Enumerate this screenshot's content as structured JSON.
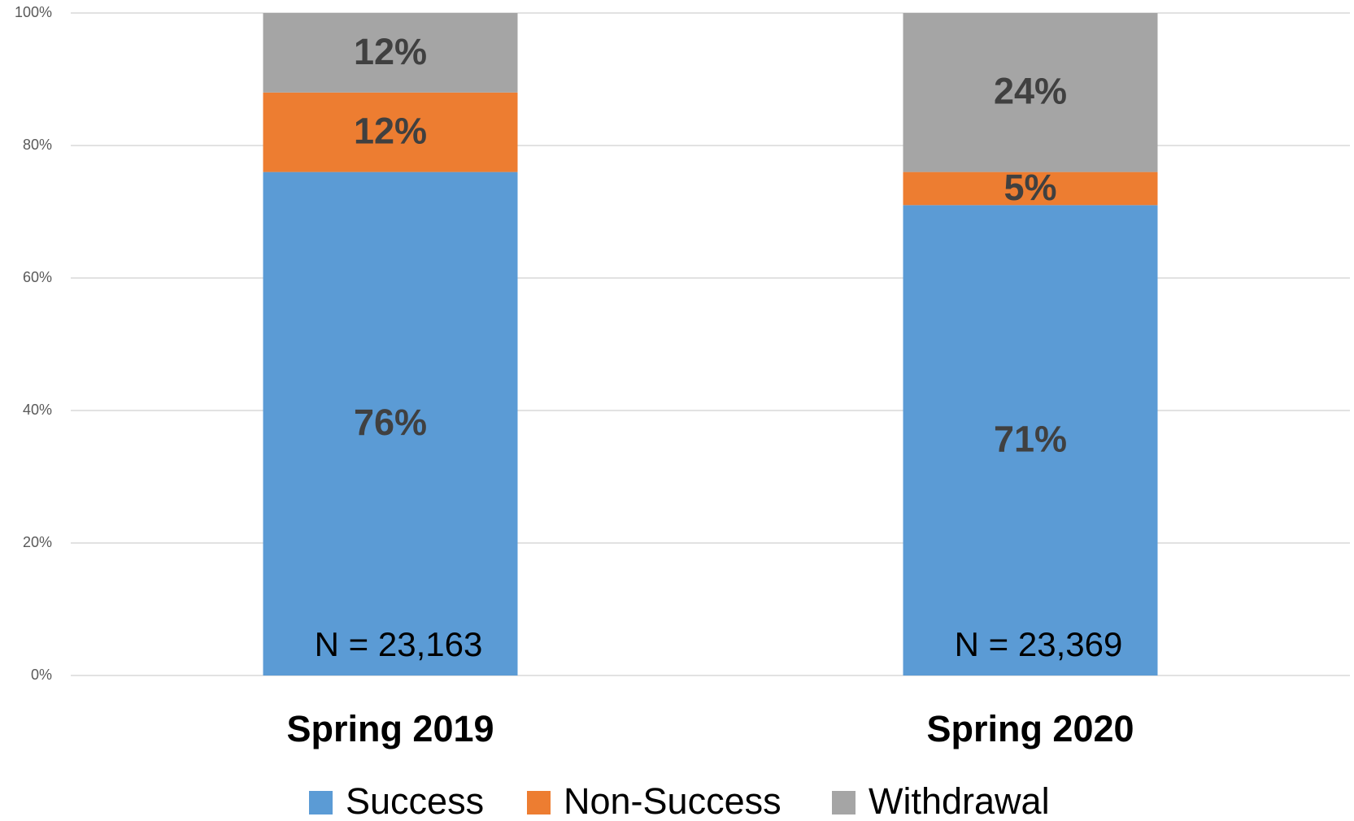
{
  "chart_data": {
    "type": "stacked_bar",
    "categories": [
      "Spring 2019",
      "Spring 2020"
    ],
    "series": [
      {
        "name": "Success",
        "color": "#5b9bd5",
        "values": [
          76,
          71
        ],
        "value_labels": [
          "76%",
          "71%"
        ]
      },
      {
        "name": "Non-Success",
        "color": "#ed7d31",
        "values": [
          12,
          5
        ],
        "value_labels": [
          "12%",
          "5%"
        ]
      },
      {
        "name": "Withdrawal",
        "color": "#a5a5a5",
        "values": [
          12,
          24
        ],
        "value_labels": [
          "12%",
          "24%"
        ]
      }
    ],
    "annotations": [
      "N = 23,163",
      "N = 23,369"
    ],
    "ylim": [
      0,
      100
    ],
    "yticks": [
      {
        "value": 0,
        "label": "0%"
      },
      {
        "value": 20,
        "label": "20%"
      },
      {
        "value": 40,
        "label": "40%"
      },
      {
        "value": 60,
        "label": "60%"
      },
      {
        "value": 80,
        "label": "80%"
      },
      {
        "value": 100,
        "label": "100%"
      }
    ],
    "grid": true,
    "legend": "bottom"
  }
}
